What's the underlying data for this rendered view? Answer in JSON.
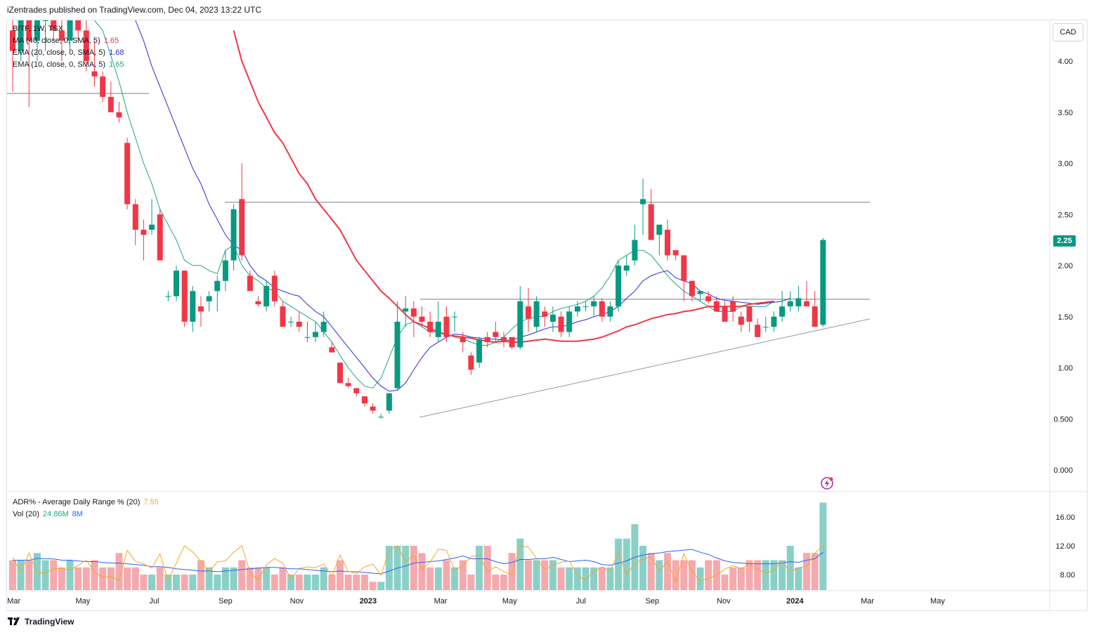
{
  "header": {
    "published": "iZentrades published on TradingView.com, Dec 04, 2023 13:22 UTC"
  },
  "legend": {
    "symbol": "BITF, 1W, TSX",
    "indicators": [
      {
        "label": "MA (40, close, 0, SMA, 5)",
        "value": "1.65",
        "color": "#f23645"
      },
      {
        "label": "EMA (20, close, 0, SMA, 5)",
        "value": "1.68",
        "color": "#2a2ad6"
      },
      {
        "label": "EMA (10, close, 0, SMA, 5)",
        "value": "1.65",
        "color": "#22a383"
      }
    ],
    "adr": {
      "label": "ADR% - Average Daily Range % (20)",
      "value": "7.55",
      "color": "#f5a623"
    },
    "vol": {
      "label": "Vol (20)",
      "value": "24.86M",
      "value2": "8M",
      "color": "#22a383",
      "color2": "#2962ff"
    }
  },
  "currency_button": "CAD",
  "last_price": "2.25",
  "footer": {
    "brand": "TradingView"
  },
  "colors": {
    "up": "#089981",
    "down": "#f23645",
    "volume_up": "#8ad0c7",
    "volume_down": "#f6a9ad"
  },
  "chart_data": {
    "type": "candlestick",
    "timeframe": "1W",
    "price_axis_ticks": [
      "4.00",
      "3.50",
      "3.00",
      "2.50",
      "2.00",
      "1.50",
      "1.00",
      "0.500",
      "0.000"
    ],
    "volume_axis_ticks": [
      "16.00",
      "12.00",
      "8.00"
    ],
    "time_axis_labels": [
      "Mar",
      "May",
      "Jul",
      "Sep",
      "Nov",
      "2023",
      "Mar",
      "May",
      "Jul",
      "Sep",
      "Nov",
      "2024",
      "Mar",
      "May"
    ],
    "time_axis_start": "2022-01-31",
    "candles": [
      [
        4.3,
        4.6,
        3.7,
        4.1
      ],
      [
        4.1,
        4.5,
        4.0,
        4.4
      ],
      [
        4.4,
        4.6,
        3.55,
        4.2
      ],
      [
        4.2,
        4.5,
        4.0,
        4.4
      ],
      [
        4.4,
        4.6,
        4.1,
        4.5
      ],
      [
        4.5,
        4.8,
        4.2,
        4.3
      ],
      [
        4.3,
        4.6,
        4.0,
        4.2
      ],
      [
        4.2,
        4.7,
        4.1,
        4.6
      ],
      [
        4.6,
        4.9,
        4.2,
        4.3
      ],
      [
        4.3,
        4.7,
        3.9,
        4.0
      ],
      [
        3.9,
        4.2,
        3.75,
        3.85
      ],
      [
        3.85,
        3.9,
        3.6,
        3.65
      ],
      [
        3.65,
        3.8,
        3.5,
        3.5
      ],
      [
        3.5,
        3.6,
        3.4,
        3.45
      ],
      [
        3.2,
        3.25,
        2.55,
        2.6
      ],
      [
        2.6,
        2.65,
        2.2,
        2.35
      ],
      [
        2.35,
        2.45,
        2.05,
        2.3
      ],
      [
        2.35,
        2.65,
        2.3,
        2.4
      ],
      [
        2.5,
        2.55,
        2.05,
        2.05
      ],
      [
        1.7,
        1.75,
        1.65,
        1.7
      ],
      [
        1.7,
        2.0,
        1.65,
        1.95
      ],
      [
        1.95,
        1.95,
        1.4,
        1.45
      ],
      [
        1.45,
        1.8,
        1.35,
        1.75
      ],
      [
        1.6,
        1.7,
        1.4,
        1.55
      ],
      [
        1.65,
        1.75,
        1.55,
        1.7
      ],
      [
        1.75,
        1.9,
        1.55,
        1.85
      ],
      [
        1.85,
        2.15,
        1.75,
        2.05
      ],
      [
        2.05,
        2.6,
        1.95,
        2.55
      ],
      [
        2.65,
        3.0,
        2.05,
        2.1
      ],
      [
        1.9,
        1.95,
        1.75,
        1.75
      ],
      [
        1.65,
        1.7,
        1.6,
        1.62
      ],
      [
        1.6,
        1.85,
        1.55,
        1.8
      ],
      [
        1.9,
        1.95,
        1.6,
        1.65
      ],
      [
        1.6,
        1.65,
        1.4,
        1.4
      ],
      [
        1.45,
        1.5,
        1.4,
        1.45
      ],
      [
        1.45,
        1.55,
        1.35,
        1.4
      ],
      [
        1.3,
        1.45,
        1.25,
        1.3
      ],
      [
        1.3,
        1.45,
        1.25,
        1.35
      ],
      [
        1.35,
        1.55,
        1.3,
        1.45
      ],
      [
        1.2,
        1.25,
        1.15,
        1.15
      ],
      [
        1.05,
        1.05,
        0.85,
        0.85
      ],
      [
        0.85,
        0.9,
        0.8,
        0.82
      ],
      [
        0.8,
        0.8,
        0.72,
        0.75
      ],
      [
        0.72,
        0.72,
        0.62,
        0.65
      ],
      [
        0.62,
        0.65,
        0.55,
        0.58
      ],
      [
        0.52,
        0.55,
        0.5,
        0.52
      ],
      [
        0.58,
        0.75,
        0.55,
        0.75
      ],
      [
        0.8,
        1.65,
        0.78,
        1.45
      ],
      [
        1.55,
        1.7,
        1.4,
        1.58
      ],
      [
        1.58,
        1.65,
        1.3,
        1.5
      ],
      [
        1.5,
        1.6,
        1.4,
        1.45
      ],
      [
        1.45,
        1.55,
        1.3,
        1.35
      ],
      [
        1.3,
        1.65,
        1.25,
        1.45
      ],
      [
        1.5,
        1.6,
        1.25,
        1.3
      ],
      [
        1.5,
        1.55,
        1.35,
        1.5
      ],
      [
        1.3,
        1.35,
        1.15,
        1.25
      ],
      [
        1.12,
        1.15,
        0.93,
        0.98
      ],
      [
        1.05,
        1.3,
        1.0,
        1.28
      ],
      [
        1.3,
        1.35,
        1.2,
        1.25
      ],
      [
        1.35,
        1.45,
        1.25,
        1.3
      ],
      [
        1.3,
        1.35,
        1.2,
        1.25
      ],
      [
        1.3,
        1.3,
        1.18,
        1.2
      ],
      [
        1.2,
        1.8,
        1.18,
        1.65
      ],
      [
        1.6,
        1.78,
        1.35,
        1.48
      ],
      [
        1.4,
        1.7,
        1.35,
        1.65
      ],
      [
        1.55,
        1.6,
        1.4,
        1.5
      ],
      [
        1.45,
        1.6,
        1.35,
        1.52
      ],
      [
        1.5,
        1.55,
        1.3,
        1.35
      ],
      [
        1.35,
        1.6,
        1.3,
        1.55
      ],
      [
        1.55,
        1.65,
        1.5,
        1.6
      ],
      [
        1.6,
        1.65,
        1.55,
        1.6
      ],
      [
        1.6,
        1.7,
        1.5,
        1.65
      ],
      [
        1.65,
        1.68,
        1.45,
        1.5
      ],
      [
        1.5,
        1.65,
        1.45,
        1.6
      ],
      [
        1.6,
        2.05,
        1.55,
        2.0
      ],
      [
        1.95,
        2.1,
        1.9,
        2.0
      ],
      [
        2.05,
        2.4,
        2.0,
        2.25
      ],
      [
        2.6,
        2.85,
        2.3,
        2.65
      ],
      [
        2.6,
        2.75,
        2.25,
        2.25
      ],
      [
        2.3,
        2.4,
        2.1,
        2.4
      ],
      [
        2.35,
        2.45,
        2.05,
        2.1
      ],
      [
        2.15,
        2.15,
        2.05,
        2.1
      ],
      [
        2.1,
        2.1,
        1.65,
        1.85
      ],
      [
        1.85,
        1.85,
        1.65,
        1.7
      ],
      [
        1.72,
        1.75,
        1.65,
        1.75
      ],
      [
        1.7,
        1.75,
        1.63,
        1.65
      ],
      [
        1.65,
        1.7,
        1.55,
        1.55
      ],
      [
        1.6,
        1.65,
        1.45,
        1.45
      ],
      [
        1.65,
        1.7,
        1.45,
        1.55
      ],
      [
        1.5,
        1.55,
        1.35,
        1.42
      ],
      [
        1.6,
        1.6,
        1.35,
        1.45
      ],
      [
        1.42,
        1.48,
        1.3,
        1.3
      ],
      [
        1.4,
        1.5,
        1.35,
        1.4
      ],
      [
        1.4,
        1.55,
        1.35,
        1.5
      ],
      [
        1.5,
        1.75,
        1.45,
        1.6
      ],
      [
        1.6,
        1.75,
        1.55,
        1.65
      ],
      [
        1.6,
        1.8,
        1.55,
        1.68
      ],
      [
        1.65,
        1.85,
        1.6,
        1.6
      ],
      [
        1.6,
        1.75,
        1.4,
        1.4
      ],
      [
        1.42,
        2.27,
        1.4,
        2.25
      ]
    ],
    "volume": [
      10,
      10,
      10,
      11,
      10,
      10,
      9,
      10,
      9,
      9,
      10,
      9,
      9,
      11,
      9,
      9,
      8,
      8,
      9,
      8,
      8,
      8,
      8,
      10,
      9,
      8,
      9,
      9,
      10,
      9,
      9,
      9,
      8,
      9,
      8,
      8,
      8,
      8,
      9,
      8,
      10,
      8,
      8,
      8,
      7,
      7,
      12,
      12,
      12,
      12,
      11,
      9,
      9,
      10,
      9,
      10,
      8,
      12,
      12,
      8,
      8,
      11,
      13,
      10,
      10,
      10,
      10,
      9,
      9,
      9,
      9,
      9,
      9,
      9,
      13,
      13,
      15,
      12,
      11,
      10,
      11,
      10,
      10,
      10,
      9,
      10,
      10,
      8,
      9,
      9,
      10,
      10,
      10,
      10,
      10,
      12,
      9,
      11,
      11,
      18
    ],
    "ma40": [
      null,
      null,
      null,
      null,
      null,
      null,
      null,
      null,
      null,
      null,
      null,
      null,
      null,
      null,
      null,
      null,
      null,
      null,
      null,
      null,
      null,
      null,
      null,
      null,
      null,
      null,
      null,
      4.3,
      4.0,
      3.8,
      3.6,
      3.45,
      3.3,
      3.2,
      3.05,
      2.9,
      2.8,
      2.65,
      2.55,
      2.45,
      2.35,
      2.2,
      2.05,
      1.95,
      1.85,
      1.75,
      1.68,
      1.6,
      1.52,
      1.45,
      1.42,
      1.38,
      1.35,
      1.32,
      1.31,
      1.3,
      1.29,
      1.27,
      1.26,
      1.25,
      1.26,
      1.25,
      1.25,
      1.26,
      1.27,
      1.28,
      1.27,
      1.26,
      1.26,
      1.26,
      1.27,
      1.28,
      1.3,
      1.33,
      1.36,
      1.4,
      1.42,
      1.45,
      1.48,
      1.5,
      1.52,
      1.53,
      1.55,
      1.56,
      1.58,
      1.6,
      1.6,
      1.6,
      1.6,
      1.6,
      1.62,
      1.63,
      1.64,
      1.65
    ],
    "ema20": [
      null,
      null,
      null,
      null,
      null,
      null,
      null,
      null,
      null,
      null,
      null,
      null,
      null,
      null,
      null,
      4.4,
      4.2,
      3.95,
      3.75,
      3.55,
      3.35,
      3.15,
      2.95,
      2.8,
      2.6,
      2.45,
      2.3,
      2.2,
      2.15,
      2.0,
      1.9,
      1.85,
      1.78,
      1.75,
      1.72,
      1.7,
      1.62,
      1.55,
      1.5,
      1.4,
      1.3,
      1.2,
      1.1,
      1.0,
      0.9,
      0.82,
      0.77,
      0.78,
      0.85,
      0.98,
      1.1,
      1.2,
      1.25,
      1.3,
      1.33,
      1.32,
      1.3,
      1.29,
      1.28,
      1.28,
      1.27,
      1.27,
      1.3,
      1.32,
      1.35,
      1.38,
      1.4,
      1.4,
      1.42,
      1.45,
      1.47,
      1.5,
      1.52,
      1.55,
      1.6,
      1.68,
      1.75,
      1.85,
      1.9,
      1.93,
      1.95,
      1.88,
      1.85,
      1.82,
      1.75,
      1.72,
      1.68,
      1.66,
      1.65,
      1.64,
      1.63,
      1.62,
      1.63,
      1.64,
      1.65,
      1.68
    ],
    "ema10": [
      null,
      null,
      null,
      null,
      null,
      null,
      null,
      null,
      null,
      null,
      4.5,
      4.3,
      4.05,
      3.8,
      3.5,
      3.25,
      3.0,
      2.8,
      2.55,
      2.4,
      2.25,
      2.05,
      2.0,
      2.0,
      1.95,
      1.92,
      2.15,
      2.2,
      2.0,
      1.9,
      1.85,
      1.78,
      1.75,
      1.65,
      1.6,
      1.55,
      1.5,
      1.45,
      1.35,
      1.25,
      1.12,
      1.0,
      0.9,
      0.82,
      0.8,
      0.9,
      1.1,
      1.3,
      1.42,
      1.45,
      1.4,
      1.35,
      1.35,
      1.33,
      1.3,
      1.28,
      1.25,
      1.22,
      1.22,
      1.25,
      1.3,
      1.38,
      1.45,
      1.48,
      1.5,
      1.5,
      1.55,
      1.58,
      1.6,
      1.62,
      1.65,
      1.7,
      1.78,
      1.9,
      2.05,
      2.1,
      2.15,
      2.15,
      2.1,
      2.0,
      1.9,
      1.82,
      1.75,
      1.7,
      1.65,
      1.6,
      1.55,
      1.55,
      1.55,
      1.6,
      1.6,
      1.6,
      1.6,
      1.65
    ]
  }
}
